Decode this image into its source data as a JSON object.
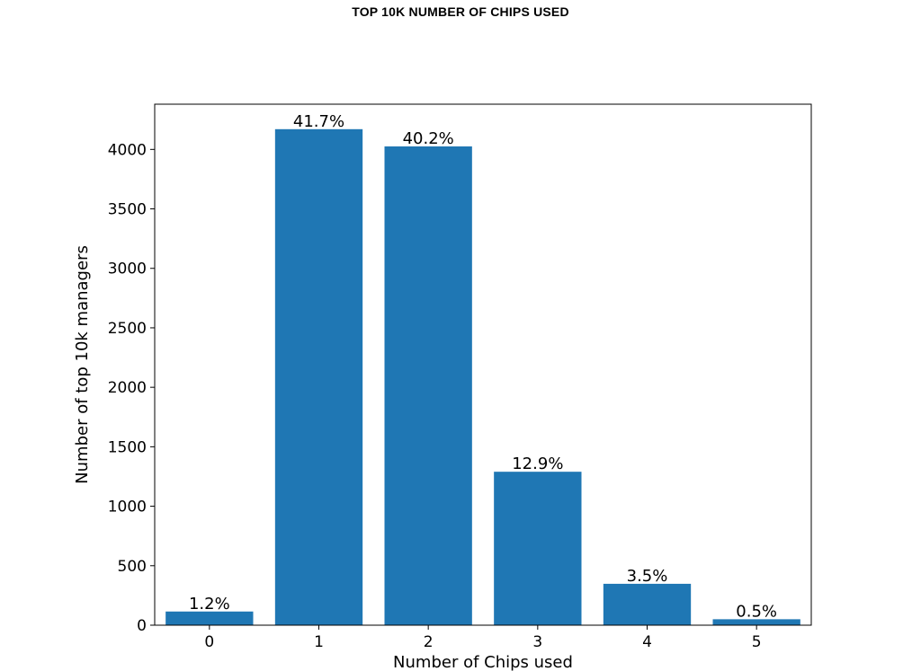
{
  "page": {
    "title": "TOP 10K NUMBER OF CHIPS USED"
  },
  "chart_data": {
    "type": "bar",
    "title": "",
    "xlabel": "Number of Chips used",
    "ylabel": "Number of top 10k managers",
    "categories": [
      "0",
      "1",
      "2",
      "3",
      "4",
      "5"
    ],
    "values": [
      115,
      4170,
      4025,
      1290,
      348,
      50
    ],
    "data_labels": [
      "1.2%",
      "41.7%",
      "40.2%",
      "12.9%",
      "3.5%",
      "0.5%"
    ],
    "yticks": [
      0,
      500,
      1000,
      1500,
      2000,
      2500,
      3000,
      3500,
      4000
    ],
    "ylim": [
      0,
      4380
    ],
    "grid": false,
    "bar_color": "#1f77b4"
  }
}
